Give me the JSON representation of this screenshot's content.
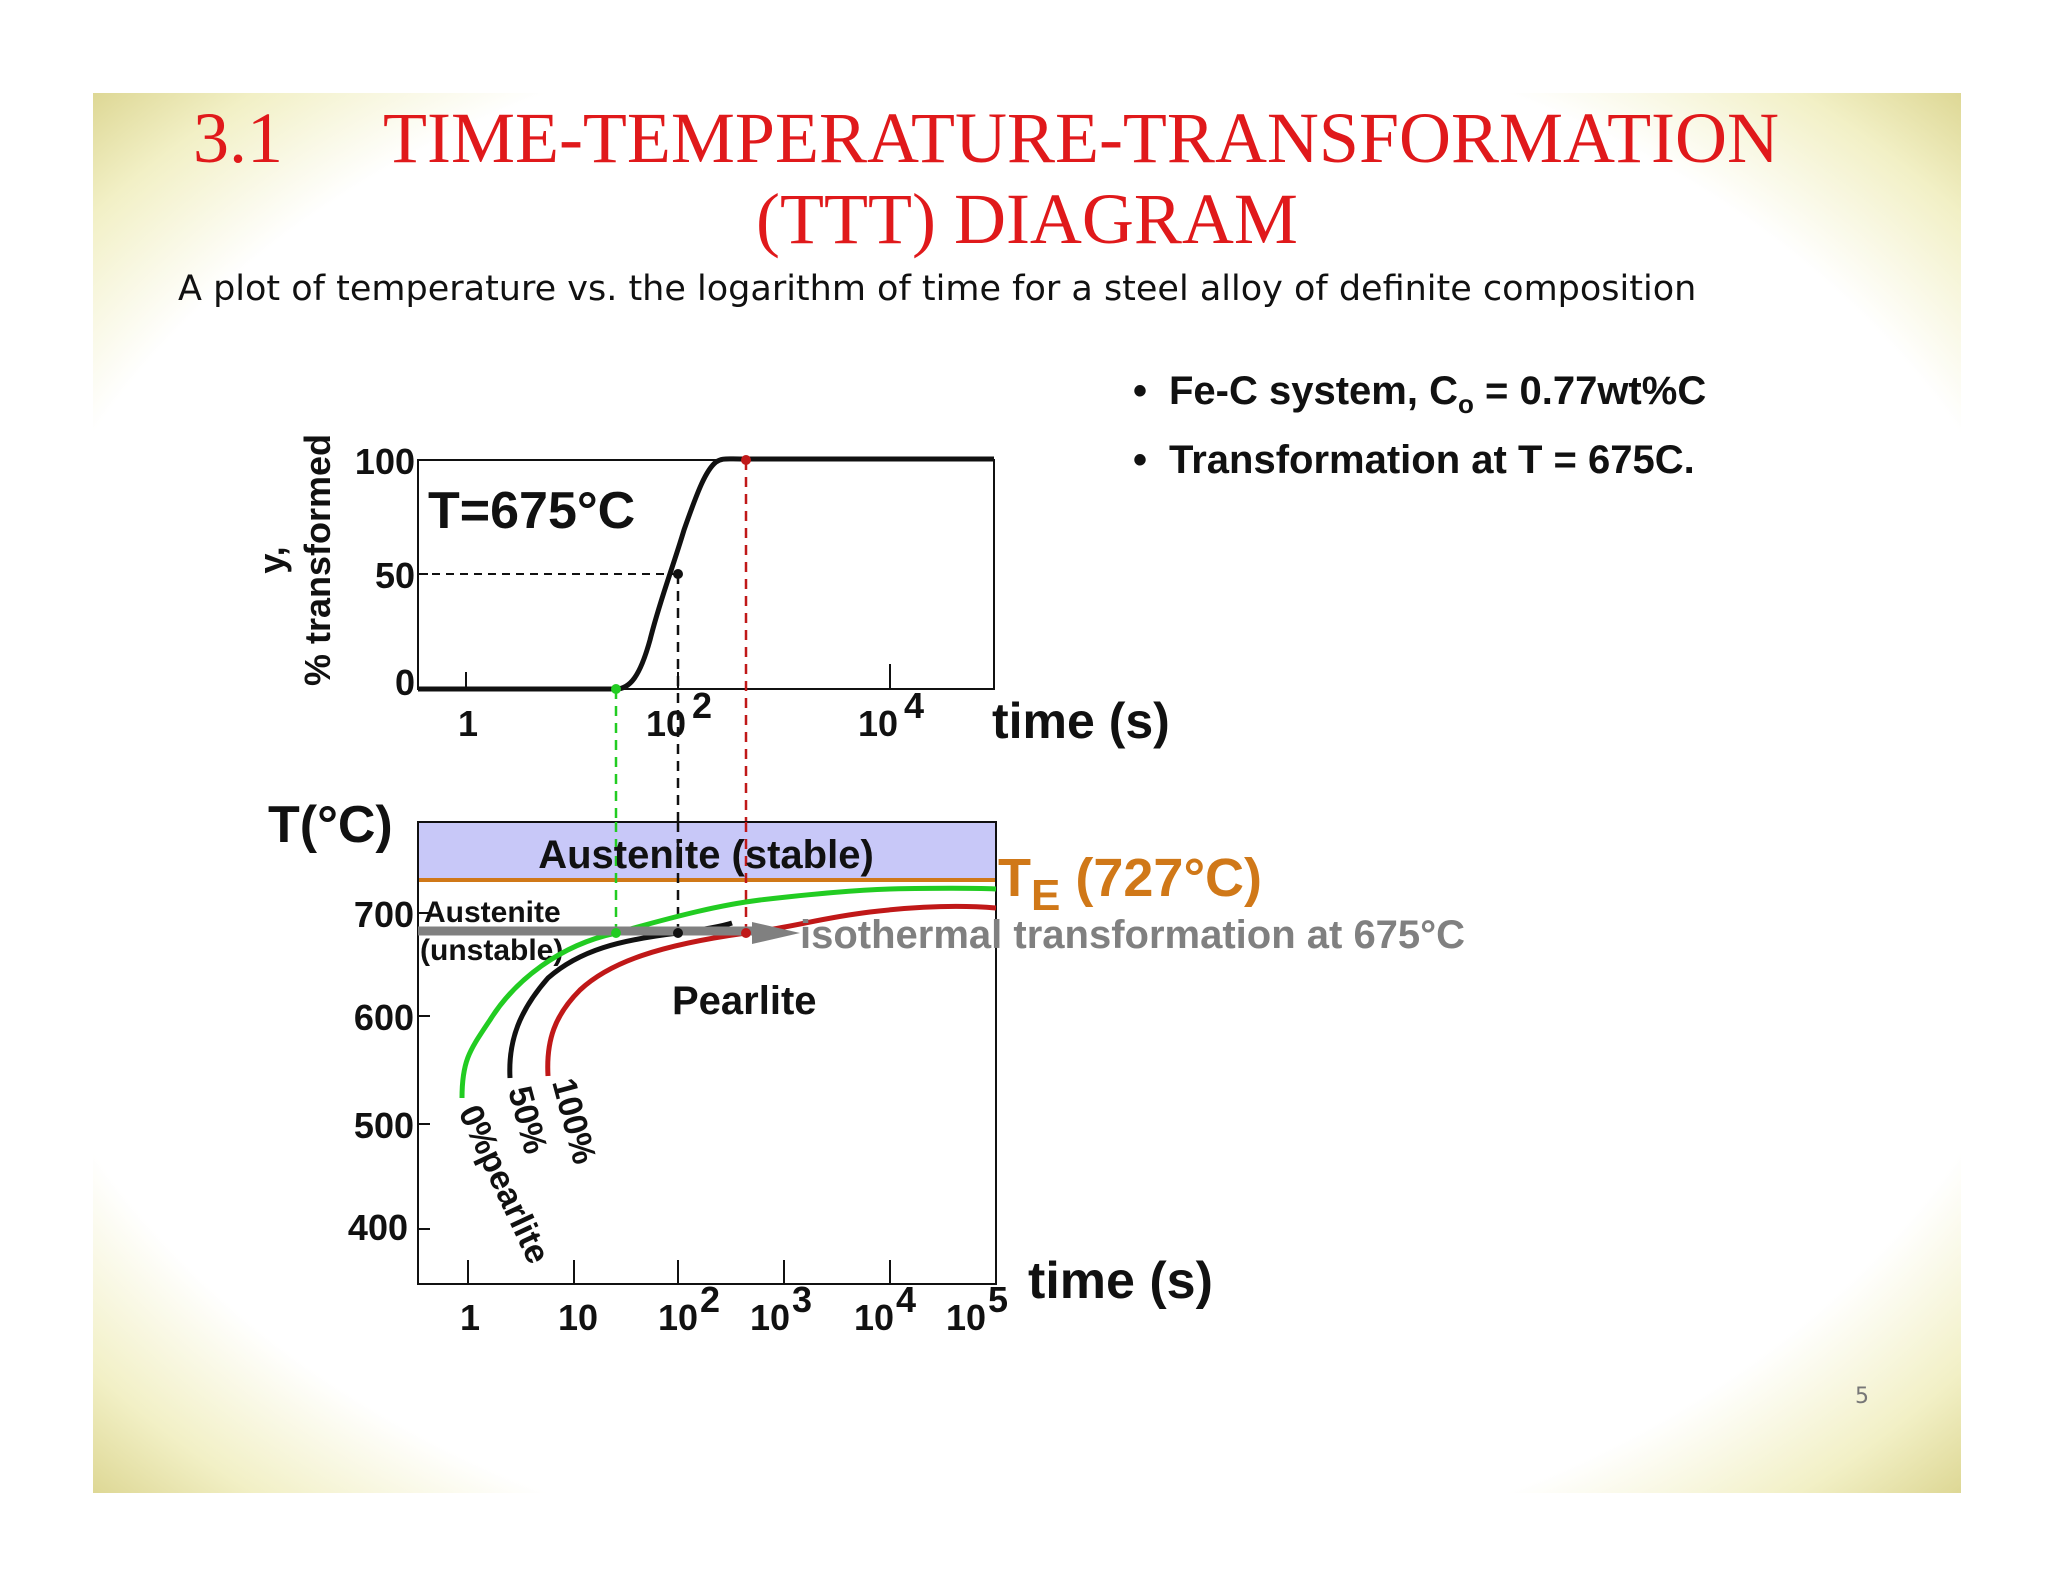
{
  "title": {
    "number": "3.1",
    "line1": "TIME-TEMPERATURE-TRANSFORMATION",
    "line2": "(TTT) DIAGRAM"
  },
  "subtitle": "A plot of temperature vs. the logarithm of time for a steel alloy of definite composition",
  "bullets": [
    {
      "prefix": "Fe-C system, C",
      "sub": "o",
      "suffix": " = 0.77wt%C"
    },
    {
      "prefix": "Transformation at T = 675C.",
      "sub": "",
      "suffix": ""
    }
  ],
  "page_number": "5",
  "colors": {
    "title": "#e0191b",
    "austenite_stable_band": "#c8c8f8",
    "eutectoid_line": "#d07818",
    "start_curve": "#22cc22",
    "fifty_curve": "#111111",
    "finish_curve": "#c01818",
    "isothermal_arrow": "#808080"
  },
  "top_plot": {
    "y_axis_label_1": "y,",
    "y_axis_label_2": "% transformed",
    "y_ticks": [
      "100",
      "50",
      "0"
    ],
    "x_ticks": [
      {
        "base": "1",
        "exp": ""
      },
      {
        "base": "10",
        "exp": "2"
      },
      {
        "base": "10",
        "exp": "4"
      }
    ],
    "x_axis_label": "time (s)",
    "annotation": "T=675°C"
  },
  "bottom_plot": {
    "y_axis_label": "T(°C)",
    "y_ticks": [
      "700",
      "600",
      "500",
      "400"
    ],
    "x_ticks": [
      {
        "base": "1",
        "exp": ""
      },
      {
        "base": "10",
        "exp": ""
      },
      {
        "base": "10",
        "exp": "2"
      },
      {
        "base": "10",
        "exp": "3"
      },
      {
        "base": "10",
        "exp": "4"
      },
      {
        "base": "10",
        "exp": "5"
      }
    ],
    "x_axis_label": "time (s)",
    "region_stable": "Austenite (stable)",
    "region_unstable_1": "Austenite",
    "region_unstable_2": "(unstable)",
    "region_pearlite": "Pearlite",
    "eutectoid_label_main": "T",
    "eutectoid_label_sub": "E",
    "eutectoid_label_value": " (727°C)",
    "isothermal_label": "isothermal transformation at 675°C",
    "curve_label_start": "0%pearlite",
    "curve_label_fifty": "50%",
    "curve_label_finish": "100%"
  }
}
